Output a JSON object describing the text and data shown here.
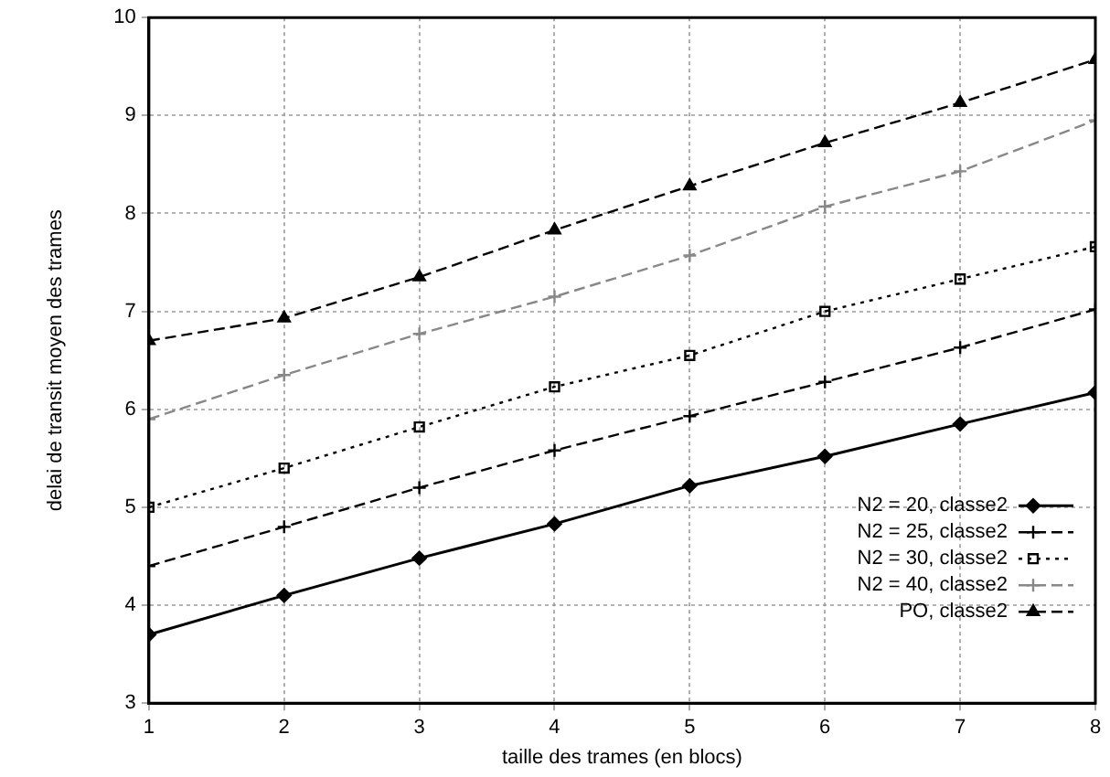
{
  "chart_data": {
    "type": "line",
    "xlabel": "taille des trames (en blocs)",
    "ylabel": "delai de transit moyen des trames",
    "x": [
      1,
      2,
      3,
      4,
      5,
      6,
      7,
      8
    ],
    "xlim": [
      1,
      8
    ],
    "xticks": [
      1,
      2,
      3,
      4,
      5,
      6,
      7,
      8
    ],
    "ylim": [
      3,
      10
    ],
    "yticks": [
      3,
      4,
      5,
      6,
      7,
      8,
      9,
      10
    ],
    "grid": true,
    "legend": "bottom right",
    "series": [
      {
        "name": "N2 = 20, classe2",
        "color": "#000000",
        "marker": "diamond",
        "line_style": "solid",
        "values": [
          3.7,
          4.1,
          4.48,
          4.83,
          5.22,
          5.52,
          5.85,
          6.17
        ]
      },
      {
        "name": "N2 = 25, classe2",
        "color": "#000000",
        "marker": "cross",
        "line_style": "dashed",
        "values": [
          4.4,
          4.8,
          5.2,
          5.58,
          5.93,
          6.28,
          6.63,
          7.02
        ]
      },
      {
        "name": "N2 = 30, classe2",
        "color": "#000000",
        "marker": "square",
        "line_style": "dotted",
        "values": [
          5.0,
          5.4,
          5.82,
          6.23,
          6.55,
          7.0,
          7.33,
          7.66
        ]
      },
      {
        "name": "N2 = 40, classe2",
        "color": "#888888",
        "marker": "cross",
        "line_style": "dashed",
        "values": [
          5.9,
          6.35,
          6.77,
          7.15,
          7.57,
          8.07,
          8.43,
          8.95
        ]
      },
      {
        "name": "PO, classe2",
        "color": "#000000",
        "marker": "triangle",
        "line_style": "dashed",
        "values": [
          6.7,
          6.93,
          7.35,
          7.83,
          8.28,
          8.72,
          9.13,
          9.57
        ]
      }
    ]
  }
}
